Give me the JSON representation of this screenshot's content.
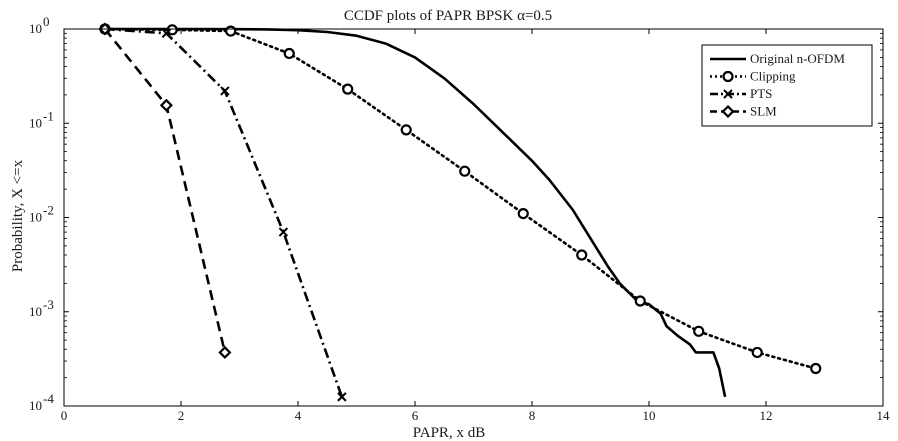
{
  "chart_data": {
    "type": "line",
    "title": "CCDF plots of PAPR BPSK α=0.5",
    "xlabel": "PAPR, x dB",
    "ylabel": "Probability,  X <=x",
    "xlim": [
      0,
      14
    ],
    "ylim": [
      0.0001,
      1
    ],
    "yscale": "log",
    "grid": false,
    "legend_position": "top-right",
    "x_ticks": [
      0,
      2,
      4,
      6,
      8,
      10,
      12,
      14
    ],
    "x_tick_labels": [
      "0",
      "2",
      "4",
      "6",
      "8",
      "10",
      "12",
      "14"
    ],
    "y_ticks": [
      0.0001,
      0.001,
      0.01,
      0.1,
      1
    ],
    "y_tick_labels": [
      {
        "base": "10",
        "exp": "-4"
      },
      {
        "base": "10",
        "exp": "-3"
      },
      {
        "base": "10",
        "exp": "-2"
      },
      {
        "base": "10",
        "exp": "-1"
      },
      {
        "base": "10",
        "exp": "0"
      }
    ],
    "series": [
      {
        "name": "Original n-OFDM",
        "line_style": "solid",
        "marker": "none",
        "color": "#000000",
        "x": [
          0.7,
          2.0,
          3.0,
          3.5,
          4.0,
          4.5,
          5.0,
          5.5,
          6.0,
          6.5,
          7.0,
          7.5,
          8.0,
          8.3,
          8.7,
          9.0,
          9.3,
          9.5,
          9.8,
          10.0,
          10.2,
          10.3,
          10.5,
          10.7,
          10.8,
          11.0,
          11.1,
          11.2,
          11.3
        ],
        "y": [
          1.0,
          1.0,
          0.995,
          0.99,
          0.97,
          0.93,
          0.85,
          0.7,
          0.5,
          0.3,
          0.16,
          0.08,
          0.04,
          0.025,
          0.012,
          0.006,
          0.003,
          0.002,
          0.0013,
          0.0012,
          0.00095,
          0.0007,
          0.00055,
          0.00045,
          0.00037,
          0.00037,
          0.00037,
          0.00025,
          0.000125
        ]
      },
      {
        "name": "Clipping",
        "line_style": "dotted",
        "marker": "circle",
        "color": "#000000",
        "x": [
          0.7,
          1.85,
          2.85,
          3.85,
          4.85,
          5.85,
          6.85,
          7.85,
          8.85,
          9.85,
          10.85,
          11.85,
          12.85
        ],
        "y": [
          1.0,
          0.98,
          0.95,
          0.55,
          0.23,
          0.085,
          0.031,
          0.011,
          0.004,
          0.0013,
          0.00062,
          0.00037,
          0.00025
        ]
      },
      {
        "name": "PTS",
        "line_style": "dashdot",
        "marker": "x",
        "color": "#000000",
        "x": [
          0.7,
          1.75,
          2.75,
          3.75,
          4.75
        ],
        "y": [
          1.0,
          0.9,
          0.22,
          0.007,
          0.000125
        ]
      },
      {
        "name": "SLM",
        "line_style": "dashed",
        "marker": "diamond",
        "color": "#000000",
        "x": [
          0.7,
          1.75,
          2.75
        ],
        "y": [
          1.0,
          0.155,
          0.00037
        ]
      }
    ]
  }
}
